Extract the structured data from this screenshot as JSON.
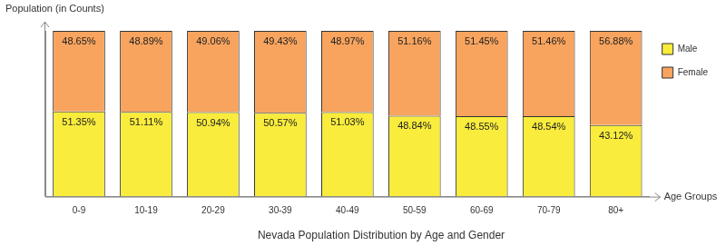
{
  "chart_data": {
    "type": "bar",
    "title": "Nevada Population Distribution by Age and Gender",
    "x_label": "Age Groups",
    "y_label": "Population (in Counts)",
    "categories": [
      "0-9",
      "10-19",
      "20-29",
      "30-39",
      "40-49",
      "50-59",
      "60-69",
      "70-79",
      "80+"
    ],
    "series": [
      {
        "name": "Male",
        "color": "#f9ec3c",
        "values": [
          51.35,
          51.11,
          50.94,
          50.57,
          51.03,
          48.84,
          48.55,
          48.54,
          43.12
        ],
        "value_labels": [
          "51.35%",
          "51.11%",
          "50.94%",
          "50.57%",
          "51.03%",
          "48.84%",
          "48.55%",
          "48.54%",
          "43.12%"
        ]
      },
      {
        "name": "Female",
        "color": "#f8a45e",
        "values": [
          48.65,
          48.89,
          49.06,
          49.43,
          48.97,
          51.16,
          51.45,
          51.46,
          56.88
        ],
        "value_labels": [
          "48.65%",
          "48.89%",
          "49.06%",
          "49.43%",
          "48.97%",
          "51.16%",
          "51.45%",
          "51.46%",
          "56.88%"
        ]
      }
    ],
    "ylim": [
      0,
      100
    ],
    "stacked": true,
    "data_labels": true,
    "tick_labels": "x",
    "grid": false,
    "legend": "right"
  }
}
